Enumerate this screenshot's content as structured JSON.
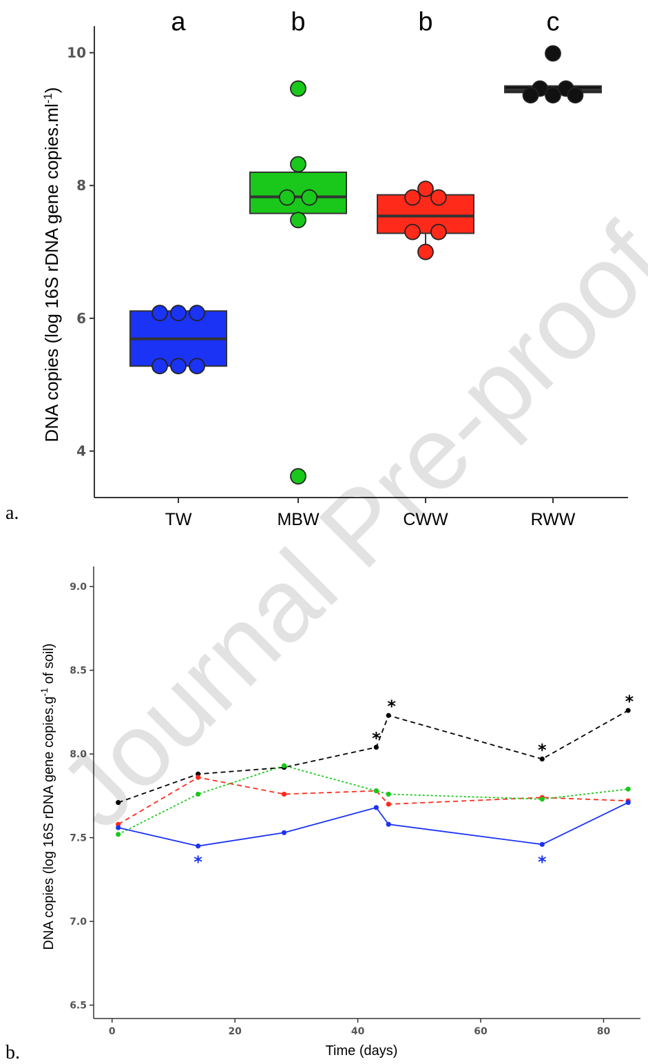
{
  "watermark": "Journal Pre-proof",
  "chart_data": [
    {
      "panel": "a.",
      "type": "box",
      "ylabel": "DNA copies (log 16S rDNA gene copies.ml",
      "ylabel_sup": "-1",
      "ylabel_end": ")",
      "ylim": [
        3.3,
        10.4
      ],
      "yticks": [
        4,
        6,
        8,
        10
      ],
      "categories": [
        "TW",
        "MBW",
        "CWW",
        "RWW"
      ],
      "letters": [
        "a",
        "b",
        "b",
        "c"
      ],
      "colors": [
        "#1a33f5",
        "#19c81a",
        "#ff2a1a",
        "#111111"
      ],
      "boxes": [
        {
          "q1": 5.28,
          "median": 5.69,
          "q3": 6.11,
          "whisker_low": 5.28,
          "whisker_high": 6.11
        },
        {
          "q1": 7.58,
          "median": 7.83,
          "q3": 8.2,
          "whisker_low": 7.48,
          "whisker_high": 8.32
        },
        {
          "q1": 7.28,
          "median": 7.54,
          "q3": 7.86,
          "whisker_low": 7.0,
          "whisker_high": 7.95
        },
        {
          "q1": 9.4,
          "median": 9.44,
          "q3": 9.5,
          "whisker_low": 9.4,
          "whisker_high": 9.5
        }
      ],
      "points": [
        [
          6.08,
          6.08,
          6.08,
          5.28,
          5.28,
          5.28
        ],
        [
          9.46,
          8.32,
          7.82,
          7.82,
          7.48,
          3.62
        ],
        [
          7.95,
          7.82,
          7.82,
          7.3,
          7.3,
          7.0
        ],
        [
          9.99,
          9.46,
          9.46,
          9.36,
          9.36,
          9.36
        ]
      ],
      "point_offsets": [
        [
          -0.5,
          0,
          0.5,
          -0.5,
          0,
          0.5
        ],
        [
          0,
          0,
          -0.3,
          0.3,
          0,
          0
        ],
        [
          0,
          -0.35,
          0.35,
          -0.35,
          0.35,
          0
        ],
        [
          0,
          -0.35,
          0.35,
          -0.6,
          0,
          0.6
        ]
      ]
    },
    {
      "panel": "b.",
      "type": "line",
      "xlabel": "Time (days)",
      "ylabel": "DNA copies (log 16S rDNA gene copies.g",
      "ylabel_sup": "-1",
      "ylabel_end": " of soil)",
      "xlim": [
        -3,
        86
      ],
      "ylim": [
        6.42,
        9.12
      ],
      "xticks": [
        0,
        20,
        40,
        60,
        80
      ],
      "yticks": [
        6.5,
        7.0,
        7.5,
        8.0,
        8.5,
        9.0
      ],
      "ytick_labels": [
        "6.5",
        "7.0",
        "7.5",
        "8.0",
        "8.5",
        "9.0"
      ],
      "x": [
        1,
        14,
        28,
        43,
        45,
        70,
        84
      ],
      "series": [
        {
          "values": [
            7.71,
            7.88,
            7.92,
            8.04,
            8.23,
            7.97,
            8.26
          ],
          "color": "#000000",
          "dash": "7,5"
        },
        {
          "values": [
            7.58,
            7.86,
            7.76,
            7.78,
            7.7,
            7.74,
            7.72
          ],
          "color": "#ff2a1a",
          "dash": "7,5"
        },
        {
          "values": [
            7.52,
            7.76,
            7.93,
            7.78,
            7.76,
            7.73,
            7.79
          ],
          "color": "#19c81a",
          "dash": "3,3"
        },
        {
          "values": [
            7.56,
            7.45,
            7.53,
            7.68,
            7.58,
            7.46,
            7.71
          ],
          "color": "#1a33f5",
          "dash": ""
        }
      ],
      "annotations": [
        {
          "text": "*",
          "x": 43,
          "y": 8.11,
          "color": "#000000"
        },
        {
          "text": "*",
          "x": 45.5,
          "y": 8.3,
          "color": "#000000"
        },
        {
          "text": "*",
          "x": 70,
          "y": 8.04,
          "color": "#000000"
        },
        {
          "text": "*",
          "x": 84.2,
          "y": 8.33,
          "color": "#000000"
        },
        {
          "text": "*",
          "x": 14,
          "y": 7.37,
          "color": "#1a33f5"
        },
        {
          "text": "*",
          "x": 70,
          "y": 7.37,
          "color": "#1a33f5"
        }
      ]
    }
  ]
}
